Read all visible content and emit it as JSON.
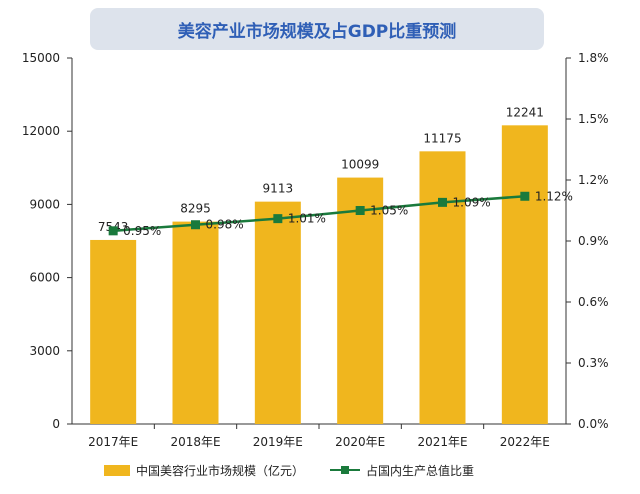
{
  "chart_data": {
    "type": "bar",
    "title": "美容产业市场规模及占GDP比重预测",
    "categories": [
      "2017年E",
      "2018年E",
      "2019年E",
      "2020年E",
      "2021年E",
      "2022年E"
    ],
    "series": [
      {
        "name": "中国美容行业市场规模（亿元）",
        "type": "bar",
        "axis": "left",
        "values": [
          7543,
          8295,
          9113,
          10099,
          11175,
          12241
        ],
        "labels": [
          "7543",
          "8295",
          "9113",
          "10099",
          "11175",
          "12241"
        ],
        "color": "#f0b61e"
      },
      {
        "name": "占国内生产总值比重",
        "type": "line",
        "axis": "right",
        "values": [
          0.95,
          0.98,
          1.01,
          1.05,
          1.09,
          1.12
        ],
        "labels": [
          "0.95%",
          "0.98%",
          "1.01%",
          "1.05%",
          "1.09%",
          "1.12%"
        ],
        "color": "#1a7a3c"
      }
    ],
    "y_left": {
      "min": 0,
      "max": 15000,
      "ticks": [
        "0",
        "3000",
        "6000",
        "9000",
        "12000",
        "15000"
      ]
    },
    "y_right": {
      "min": 0,
      "max": 1.8,
      "ticks": [
        "0.0%",
        "0.3%",
        "0.6%",
        "0.9%",
        "1.2%",
        "1.5%",
        "1.8%"
      ]
    },
    "legend_position": "bottom",
    "grid": false
  }
}
